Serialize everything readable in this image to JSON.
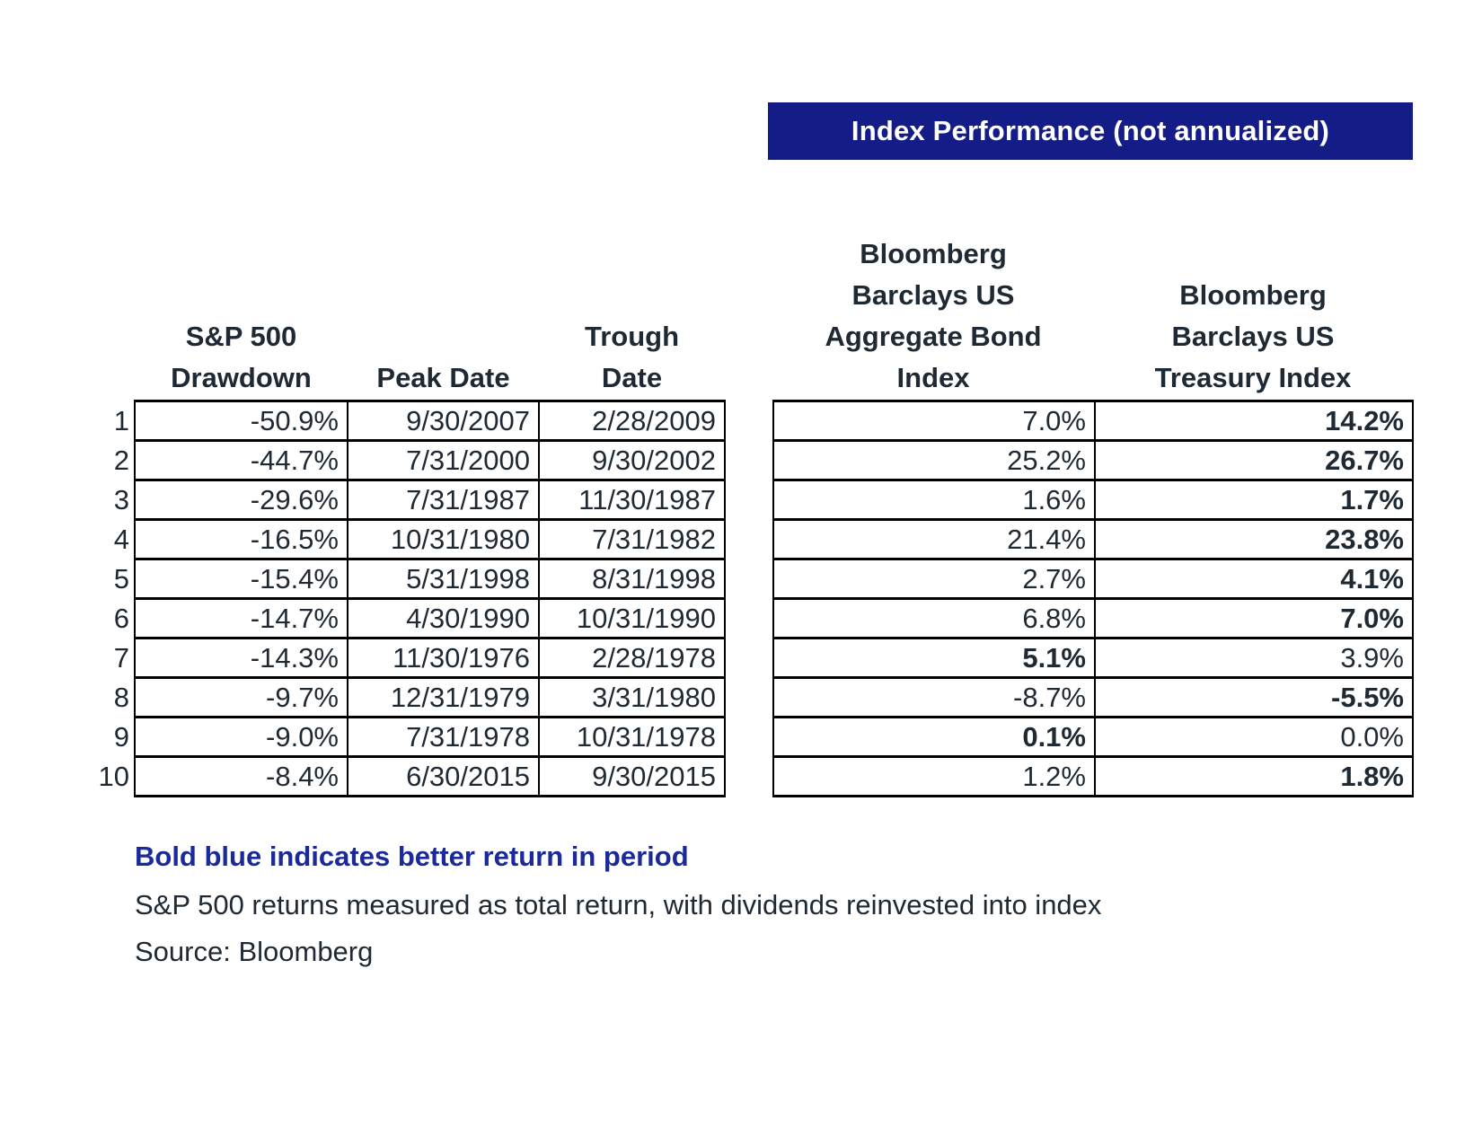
{
  "banner": {
    "label": "Index Performance (not annualized)"
  },
  "headers": {
    "drawdown_line1": "S&P 500",
    "drawdown_line2": "Drawdown",
    "peak": "Peak Date",
    "trough_line1": "Trough",
    "trough_line2": "Date",
    "bond_line1": "Bloomberg",
    "bond_line2": "Barclays US",
    "bond_line3": "Aggregate Bond",
    "bond_line4": "Index",
    "treasury_line1": "Bloomberg",
    "treasury_line2": "Barclays US",
    "treasury_line3": "Treasury Index"
  },
  "rows": [
    {
      "rank": "1",
      "drawdown": "-50.9%",
      "peak": "9/30/2007",
      "trough": "2/28/2009",
      "bond": "7.0%",
      "treasury": "14.2%",
      "better": "treasury"
    },
    {
      "rank": "2",
      "drawdown": "-44.7%",
      "peak": "7/31/2000",
      "trough": "9/30/2002",
      "bond": "25.2%",
      "treasury": "26.7%",
      "better": "treasury"
    },
    {
      "rank": "3",
      "drawdown": "-29.6%",
      "peak": "7/31/1987",
      "trough": "11/30/1987",
      "bond": "1.6%",
      "treasury": "1.7%",
      "better": "treasury"
    },
    {
      "rank": "4",
      "drawdown": "-16.5%",
      "peak": "10/31/1980",
      "trough": "7/31/1982",
      "bond": "21.4%",
      "treasury": "23.8%",
      "better": "treasury"
    },
    {
      "rank": "5",
      "drawdown": "-15.4%",
      "peak": "5/31/1998",
      "trough": "8/31/1998",
      "bond": "2.7%",
      "treasury": "4.1%",
      "better": "treasury"
    },
    {
      "rank": "6",
      "drawdown": "-14.7%",
      "peak": "4/30/1990",
      "trough": "10/31/1990",
      "bond": "6.8%",
      "treasury": "7.0%",
      "better": "treasury"
    },
    {
      "rank": "7",
      "drawdown": "-14.3%",
      "peak": "11/30/1976",
      "trough": "2/28/1978",
      "bond": "5.1%",
      "treasury": "3.9%",
      "better": "bond"
    },
    {
      "rank": "8",
      "drawdown": "-9.7%",
      "peak": "12/31/1979",
      "trough": "3/31/1980",
      "bond": "-8.7%",
      "treasury": "-5.5%",
      "better": "treasury"
    },
    {
      "rank": "9",
      "drawdown": "-9.0%",
      "peak": "7/31/1978",
      "trough": "10/31/1978",
      "bond": "0.1%",
      "treasury": "0.0%",
      "better": "bond"
    },
    {
      "rank": "10",
      "drawdown": "-8.4%",
      "peak": "6/30/2015",
      "trough": "9/30/2015",
      "bond": "1.2%",
      "treasury": "1.8%",
      "better": "treasury"
    }
  ],
  "footnotes": {
    "legend": "Bold blue indicates better return in period",
    "note": "S&P 500 returns measured as total return, with dividends reinvested into index",
    "source": "Source: Bloomberg"
  },
  "colors": {
    "banner_bg": "#141c88",
    "accent_blue": "#1b2a9b",
    "text_dark": "#1f2933",
    "border_black": "#000000"
  }
}
